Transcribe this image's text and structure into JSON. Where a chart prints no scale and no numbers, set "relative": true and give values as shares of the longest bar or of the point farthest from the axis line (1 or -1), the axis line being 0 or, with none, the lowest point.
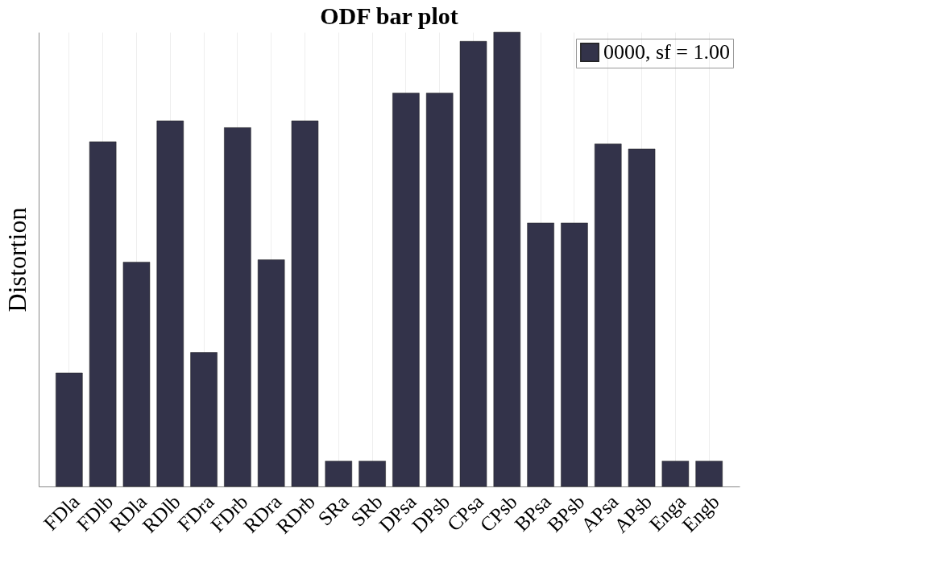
{
  "chart_data": {
    "type": "bar",
    "title": "ODF bar plot",
    "ylabel": "Distortion",
    "relative": true,
    "categories": [
      "FDla",
      "FDlb",
      "RDla",
      "RDlb",
      "FDra",
      "FDrb",
      "RDra",
      "RDrb",
      "SRa",
      "SRb",
      "DPsa",
      "DPsb",
      "CPsa",
      "CPsb",
      "BPsa",
      "BPsb",
      "APsa",
      "APsb",
      "Enga",
      "Engb"
    ],
    "series": [
      {
        "name": "0000, sf = 1.00",
        "color": "#33334a",
        "values": [
          0.25,
          0.759,
          0.494,
          0.805,
          0.295,
          0.79,
          0.499,
          0.805,
          0.056,
          0.056,
          0.866,
          0.866,
          0.98,
          1,
          0.58,
          0.58,
          0.754,
          0.743,
          0.056,
          0.056
        ]
      }
    ],
    "grid": "x",
    "legend": "top right"
  }
}
